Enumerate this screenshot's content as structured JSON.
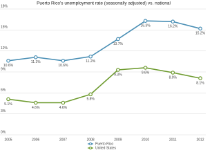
{
  "chart_data": {
    "type": "line",
    "title": "Puerto Rico's unemployment rate (seasonally adjusted) vs. national",
    "categories": [
      "2005",
      "2006",
      "2007",
      "2008",
      "2009",
      "2010",
      "2011",
      "2012"
    ],
    "series": [
      {
        "name": "Puerto Rico",
        "color": "#4a8fb5",
        "values": [
          10.6,
          11.1,
          10.6,
          11.2,
          13.7,
          16.3,
          16.2,
          15.2
        ],
        "value_labels": [
          "10.6%",
          "11.1%",
          "10.6%",
          "11.2%",
          "13.7%",
          "16.3%",
          "16.2%",
          "15.2%"
        ]
      },
      {
        "name": "United States",
        "color": "#6e9b2f",
        "values": [
          5.1,
          4.6,
          4.6,
          5.8,
          9.3,
          9.6,
          8.9,
          8.1
        ],
        "value_labels": [
          "5.1%",
          "4.6%",
          "4.6%",
          "5.8%",
          "9.3%",
          "9.6%",
          "8.9%",
          "8.1%"
        ]
      }
    ],
    "ylim": [
      0,
      18
    ],
    "yticks": [
      {
        "value": 0,
        "label": "0%"
      },
      {
        "value": 3,
        "label": "3%"
      },
      {
        "value": 6,
        "label": "6%"
      },
      {
        "value": 9,
        "label": "9%"
      },
      {
        "value": 12,
        "label": "12%"
      },
      {
        "value": 15,
        "label": "15%"
      },
      {
        "value": 18,
        "label": "18%"
      }
    ],
    "grid": true,
    "legend": "bottom"
  }
}
